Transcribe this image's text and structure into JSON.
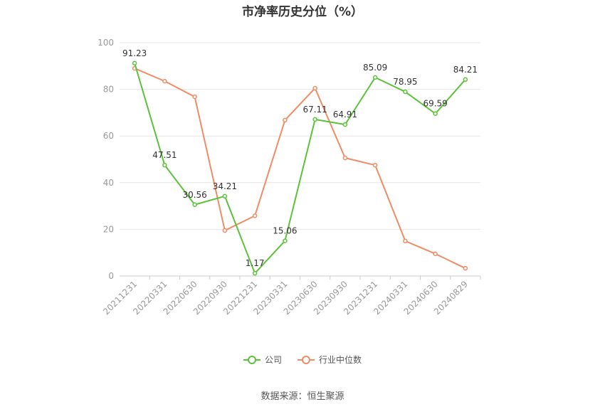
{
  "chart_data": {
    "type": "line",
    "title": "市净率历史分位（%）",
    "categories": [
      "20211231",
      "20220331",
      "20220630",
      "20220930",
      "20221231",
      "20230331",
      "20230630",
      "20230930",
      "20231231",
      "20240331",
      "20240630",
      "20240829"
    ],
    "series": [
      {
        "name": "公司",
        "color": "#5cc23a",
        "values": [
          91.23,
          47.51,
          30.56,
          34.21,
          1.17,
          15.06,
          67.11,
          64.91,
          85.09,
          78.95,
          69.59,
          84.21
        ],
        "labels": [
          "91.23",
          "47.51",
          "30.56",
          "34.21",
          "1.17",
          "15.06",
          "67.11",
          "64.91",
          "85.09",
          "78.95",
          "69.59",
          "84.21"
        ]
      },
      {
        "name": "行业中位数",
        "color": "#f08c65",
        "values": [
          89.0,
          83.5,
          76.8,
          19.5,
          25.8,
          66.8,
          80.5,
          50.6,
          47.5,
          15.0,
          9.5,
          3.3
        ]
      }
    ],
    "yticks": [
      "0",
      "20",
      "40",
      "60",
      "80",
      "100"
    ],
    "ylim": [
      0,
      100
    ],
    "grid": true,
    "legend": "bottom"
  },
  "footer": {
    "source": "数据来源：恒生聚源"
  }
}
